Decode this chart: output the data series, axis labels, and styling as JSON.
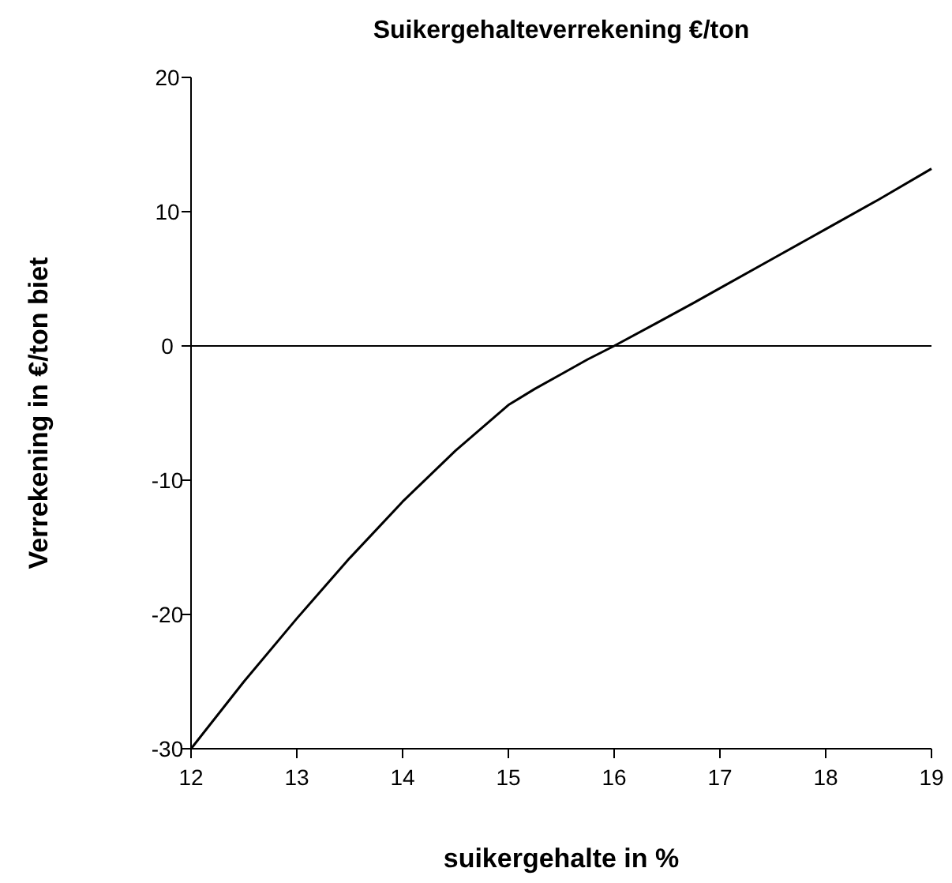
{
  "chart_data": {
    "type": "line",
    "title": "Suikergehalteverrekening €/ton",
    "xlabel": "suikergehalte in %",
    "ylabel": "Verrekening in €/ton biet",
    "x": [
      12,
      12.5,
      13,
      13.5,
      14,
      14.5,
      15,
      15.25,
      15.5,
      15.75,
      16,
      16.4,
      16.75,
      17,
      17.5,
      18,
      18.5,
      19
    ],
    "series": [
      {
        "color": "#000000",
        "values": [
          -30,
          -25,
          -20.3,
          -15.8,
          -11.6,
          -7.8,
          -4.4,
          -3.2,
          -2.1,
          -1,
          0,
          1.7,
          3.2,
          4.3,
          6.5,
          8.7,
          10.9,
          13.2
        ]
      }
    ],
    "xlim": [
      12,
      19
    ],
    "xticks": [
      12,
      13,
      14,
      15,
      16,
      17,
      18,
      19
    ],
    "ylim": [
      -30,
      20
    ],
    "yticks": [
      -30,
      -20,
      -10,
      0,
      10,
      20
    ],
    "ref_lines": [
      {
        "axis": "y",
        "value": 0,
        "color": "#000000"
      }
    ],
    "grid": false,
    "marker": "none",
    "line_style": "solid"
  }
}
